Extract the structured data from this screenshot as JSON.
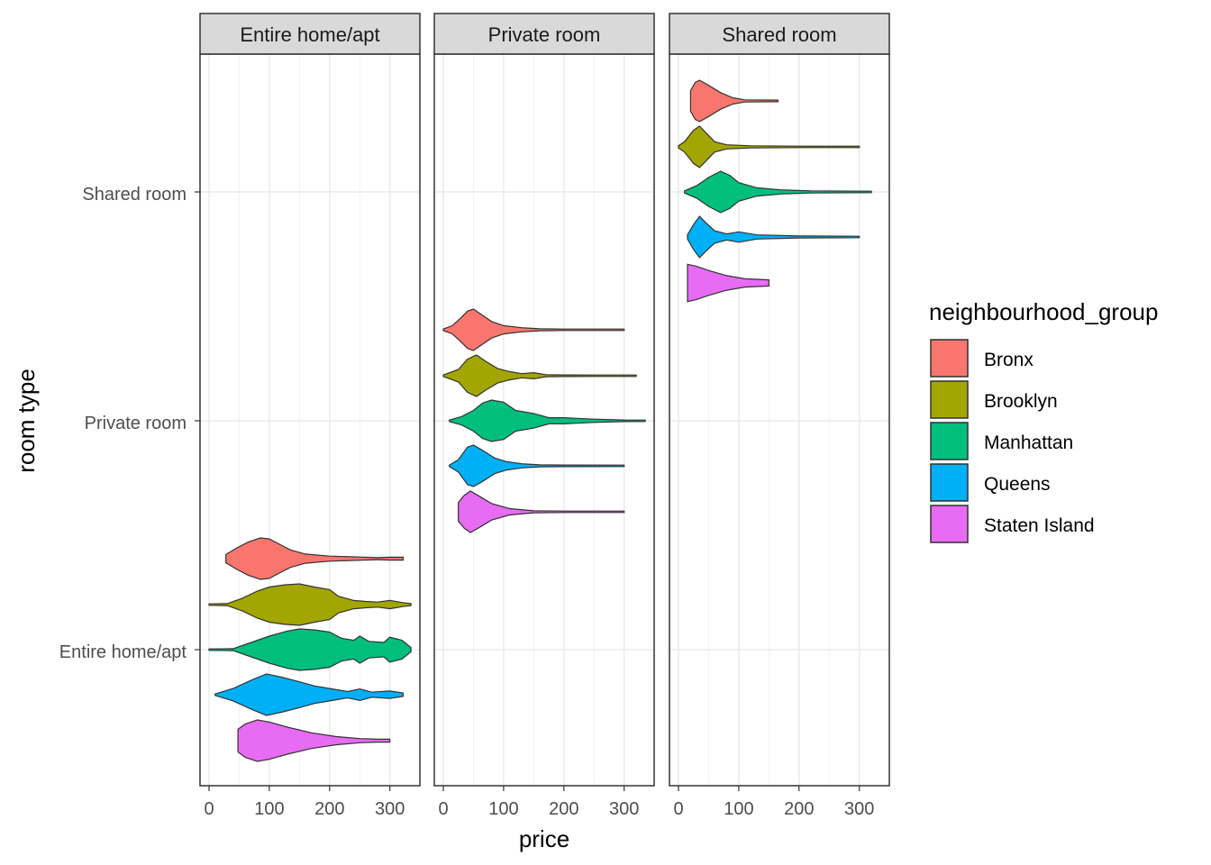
{
  "chart_data": {
    "type": "violin",
    "xlabel": "price",
    "ylabel": "room type",
    "x_ticks": [
      0,
      100,
      200,
      300
    ],
    "xlim": [
      -15,
      345
    ],
    "y_categories": [
      "Entire home/apt",
      "Private room",
      "Shared room"
    ],
    "facets": [
      "Entire home/apt",
      "Private room",
      "Shared room"
    ],
    "grid": true,
    "legend": {
      "title": "neighbourhood_group",
      "position": "right",
      "entries": [
        {
          "name": "Bronx",
          "color": "#F8766D"
        },
        {
          "name": "Brooklyn",
          "color": "#A3A500"
        },
        {
          "name": "Manhattan",
          "color": "#00BF7D"
        },
        {
          "name": "Queens",
          "color": "#00B0F6"
        },
        {
          "name": "Staten Island",
          "color": "#E76BF3"
        }
      ]
    },
    "violins": [
      {
        "facet": "Entire home/apt",
        "group": "Bronx",
        "min": 28,
        "max": 322,
        "shape": [
          [
            28,
            0.2
          ],
          [
            45,
            0.5
          ],
          [
            65,
            0.8
          ],
          [
            85,
            1.0
          ],
          [
            100,
            0.95
          ],
          [
            115,
            0.72
          ],
          [
            135,
            0.42
          ],
          [
            160,
            0.22
          ],
          [
            200,
            0.12
          ],
          [
            250,
            0.08
          ],
          [
            280,
            0.05
          ],
          [
            300,
            0.07
          ],
          [
            322,
            0.07
          ]
        ]
      },
      {
        "facet": "Entire home/apt",
        "group": "Brooklyn",
        "min": 0,
        "max": 335,
        "shape": [
          [
            0,
            0.02
          ],
          [
            30,
            0.05
          ],
          [
            55,
            0.3
          ],
          [
            80,
            0.65
          ],
          [
            100,
            0.85
          ],
          [
            125,
            0.95
          ],
          [
            150,
            1.0
          ],
          [
            175,
            0.85
          ],
          [
            200,
            0.72
          ],
          [
            215,
            0.4
          ],
          [
            240,
            0.2
          ],
          [
            260,
            0.15
          ],
          [
            280,
            0.12
          ],
          [
            300,
            0.2
          ],
          [
            320,
            0.1
          ],
          [
            335,
            0.05
          ]
        ]
      },
      {
        "facet": "Entire home/apt",
        "group": "Manhattan",
        "min": 0,
        "max": 335,
        "shape": [
          [
            0,
            0.02
          ],
          [
            40,
            0.05
          ],
          [
            70,
            0.35
          ],
          [
            100,
            0.65
          ],
          [
            130,
            0.9
          ],
          [
            150,
            1.0
          ],
          [
            175,
            0.95
          ],
          [
            200,
            0.85
          ],
          [
            220,
            0.55
          ],
          [
            240,
            0.45
          ],
          [
            250,
            0.65
          ],
          [
            265,
            0.4
          ],
          [
            290,
            0.35
          ],
          [
            300,
            0.6
          ],
          [
            320,
            0.45
          ],
          [
            335,
            0.1
          ]
        ]
      },
      {
        "facet": "Entire home/apt",
        "group": "Queens",
        "min": 10,
        "max": 322,
        "shape": [
          [
            10,
            0.02
          ],
          [
            40,
            0.3
          ],
          [
            70,
            0.7
          ],
          [
            95,
            1.0
          ],
          [
            120,
            0.85
          ],
          [
            150,
            0.62
          ],
          [
            175,
            0.42
          ],
          [
            200,
            0.3
          ],
          [
            230,
            0.15
          ],
          [
            250,
            0.28
          ],
          [
            270,
            0.12
          ],
          [
            300,
            0.18
          ],
          [
            322,
            0.08
          ]
        ]
      },
      {
        "facet": "Entire home/apt",
        "group": "Staten Island",
        "min": 48,
        "max": 300,
        "shape": [
          [
            48,
            0.55
          ],
          [
            60,
            0.8
          ],
          [
            80,
            1.0
          ],
          [
            100,
            0.9
          ],
          [
            130,
            0.65
          ],
          [
            170,
            0.38
          ],
          [
            210,
            0.2
          ],
          [
            250,
            0.1
          ],
          [
            280,
            0.07
          ],
          [
            300,
            0.07
          ]
        ]
      },
      {
        "facet": "Private room",
        "group": "Bronx",
        "min": 0,
        "max": 300,
        "shape": [
          [
            0,
            0.02
          ],
          [
            15,
            0.2
          ],
          [
            30,
            0.6
          ],
          [
            40,
            0.9
          ],
          [
            50,
            1.0
          ],
          [
            60,
            0.8
          ],
          [
            80,
            0.4
          ],
          [
            100,
            0.2
          ],
          [
            130,
            0.1
          ],
          [
            160,
            0.05
          ],
          [
            200,
            0.03
          ],
          [
            250,
            0.03
          ],
          [
            300,
            0.03
          ]
        ]
      },
      {
        "facet": "Private room",
        "group": "Brooklyn",
        "min": 0,
        "max": 320,
        "shape": [
          [
            0,
            0.02
          ],
          [
            25,
            0.3
          ],
          [
            40,
            0.8
          ],
          [
            55,
            1.0
          ],
          [
            70,
            0.7
          ],
          [
            90,
            0.35
          ],
          [
            110,
            0.2
          ],
          [
            130,
            0.1
          ],
          [
            150,
            0.15
          ],
          [
            170,
            0.05
          ],
          [
            200,
            0.04
          ],
          [
            250,
            0.03
          ],
          [
            320,
            0.02
          ]
        ]
      },
      {
        "facet": "Private room",
        "group": "Manhattan",
        "min": 10,
        "max": 335,
        "shape": [
          [
            10,
            0.02
          ],
          [
            30,
            0.2
          ],
          [
            50,
            0.5
          ],
          [
            65,
            0.85
          ],
          [
            80,
            1.0
          ],
          [
            100,
            0.9
          ],
          [
            120,
            0.5
          ],
          [
            150,
            0.35
          ],
          [
            175,
            0.15
          ],
          [
            200,
            0.15
          ],
          [
            250,
            0.08
          ],
          [
            300,
            0.04
          ],
          [
            335,
            0.02
          ]
        ]
      },
      {
        "facet": "Private room",
        "group": "Queens",
        "min": 10,
        "max": 300,
        "shape": [
          [
            10,
            0.02
          ],
          [
            25,
            0.3
          ],
          [
            40,
            0.9
          ],
          [
            50,
            1.0
          ],
          [
            65,
            0.75
          ],
          [
            85,
            0.38
          ],
          [
            105,
            0.2
          ],
          [
            130,
            0.1
          ],
          [
            160,
            0.05
          ],
          [
            200,
            0.04
          ],
          [
            300,
            0.02
          ]
        ]
      },
      {
        "facet": "Private room",
        "group": "Staten Island",
        "min": 25,
        "max": 300,
        "shape": [
          [
            25,
            0.45
          ],
          [
            35,
            0.8
          ],
          [
            45,
            1.0
          ],
          [
            60,
            0.75
          ],
          [
            80,
            0.4
          ],
          [
            110,
            0.15
          ],
          [
            150,
            0.05
          ],
          [
            200,
            0.03
          ],
          [
            300,
            0.02
          ]
        ]
      },
      {
        "facet": "Shared room",
        "group": "Bronx",
        "min": 20,
        "max": 165,
        "shape": [
          [
            20,
            0.5
          ],
          [
            28,
            0.9
          ],
          [
            35,
            1.0
          ],
          [
            50,
            0.75
          ],
          [
            70,
            0.4
          ],
          [
            90,
            0.15
          ],
          [
            110,
            0.05
          ],
          [
            165,
            0.04
          ]
        ]
      },
      {
        "facet": "Shared room",
        "group": "Brooklyn",
        "min": 0,
        "max": 300,
        "shape": [
          [
            0,
            0.05
          ],
          [
            10,
            0.25
          ],
          [
            25,
            0.8
          ],
          [
            35,
            1.0
          ],
          [
            45,
            0.7
          ],
          [
            60,
            0.25
          ],
          [
            80,
            0.1
          ],
          [
            120,
            0.05
          ],
          [
            200,
            0.03
          ],
          [
            300,
            0.02
          ]
        ]
      },
      {
        "facet": "Shared room",
        "group": "Manhattan",
        "min": 10,
        "max": 320,
        "shape": [
          [
            10,
            0.05
          ],
          [
            30,
            0.3
          ],
          [
            50,
            0.7
          ],
          [
            70,
            1.0
          ],
          [
            85,
            0.8
          ],
          [
            100,
            0.45
          ],
          [
            130,
            0.2
          ],
          [
            170,
            0.1
          ],
          [
            220,
            0.05
          ],
          [
            320,
            0.02
          ]
        ]
      },
      {
        "facet": "Shared room",
        "group": "Queens",
        "min": 15,
        "max": 300,
        "shape": [
          [
            15,
            0.1
          ],
          [
            25,
            0.6
          ],
          [
            35,
            1.0
          ],
          [
            45,
            0.7
          ],
          [
            60,
            0.3
          ],
          [
            80,
            0.15
          ],
          [
            100,
            0.25
          ],
          [
            130,
            0.1
          ],
          [
            200,
            0.05
          ],
          [
            300,
            0.02
          ]
        ]
      },
      {
        "facet": "Shared room",
        "group": "Staten Island",
        "min": 15,
        "max": 150,
        "shape": [
          [
            15,
            0.9
          ],
          [
            30,
            0.8
          ],
          [
            50,
            0.6
          ],
          [
            80,
            0.35
          ],
          [
            110,
            0.2
          ],
          [
            150,
            0.15
          ]
        ]
      }
    ]
  }
}
